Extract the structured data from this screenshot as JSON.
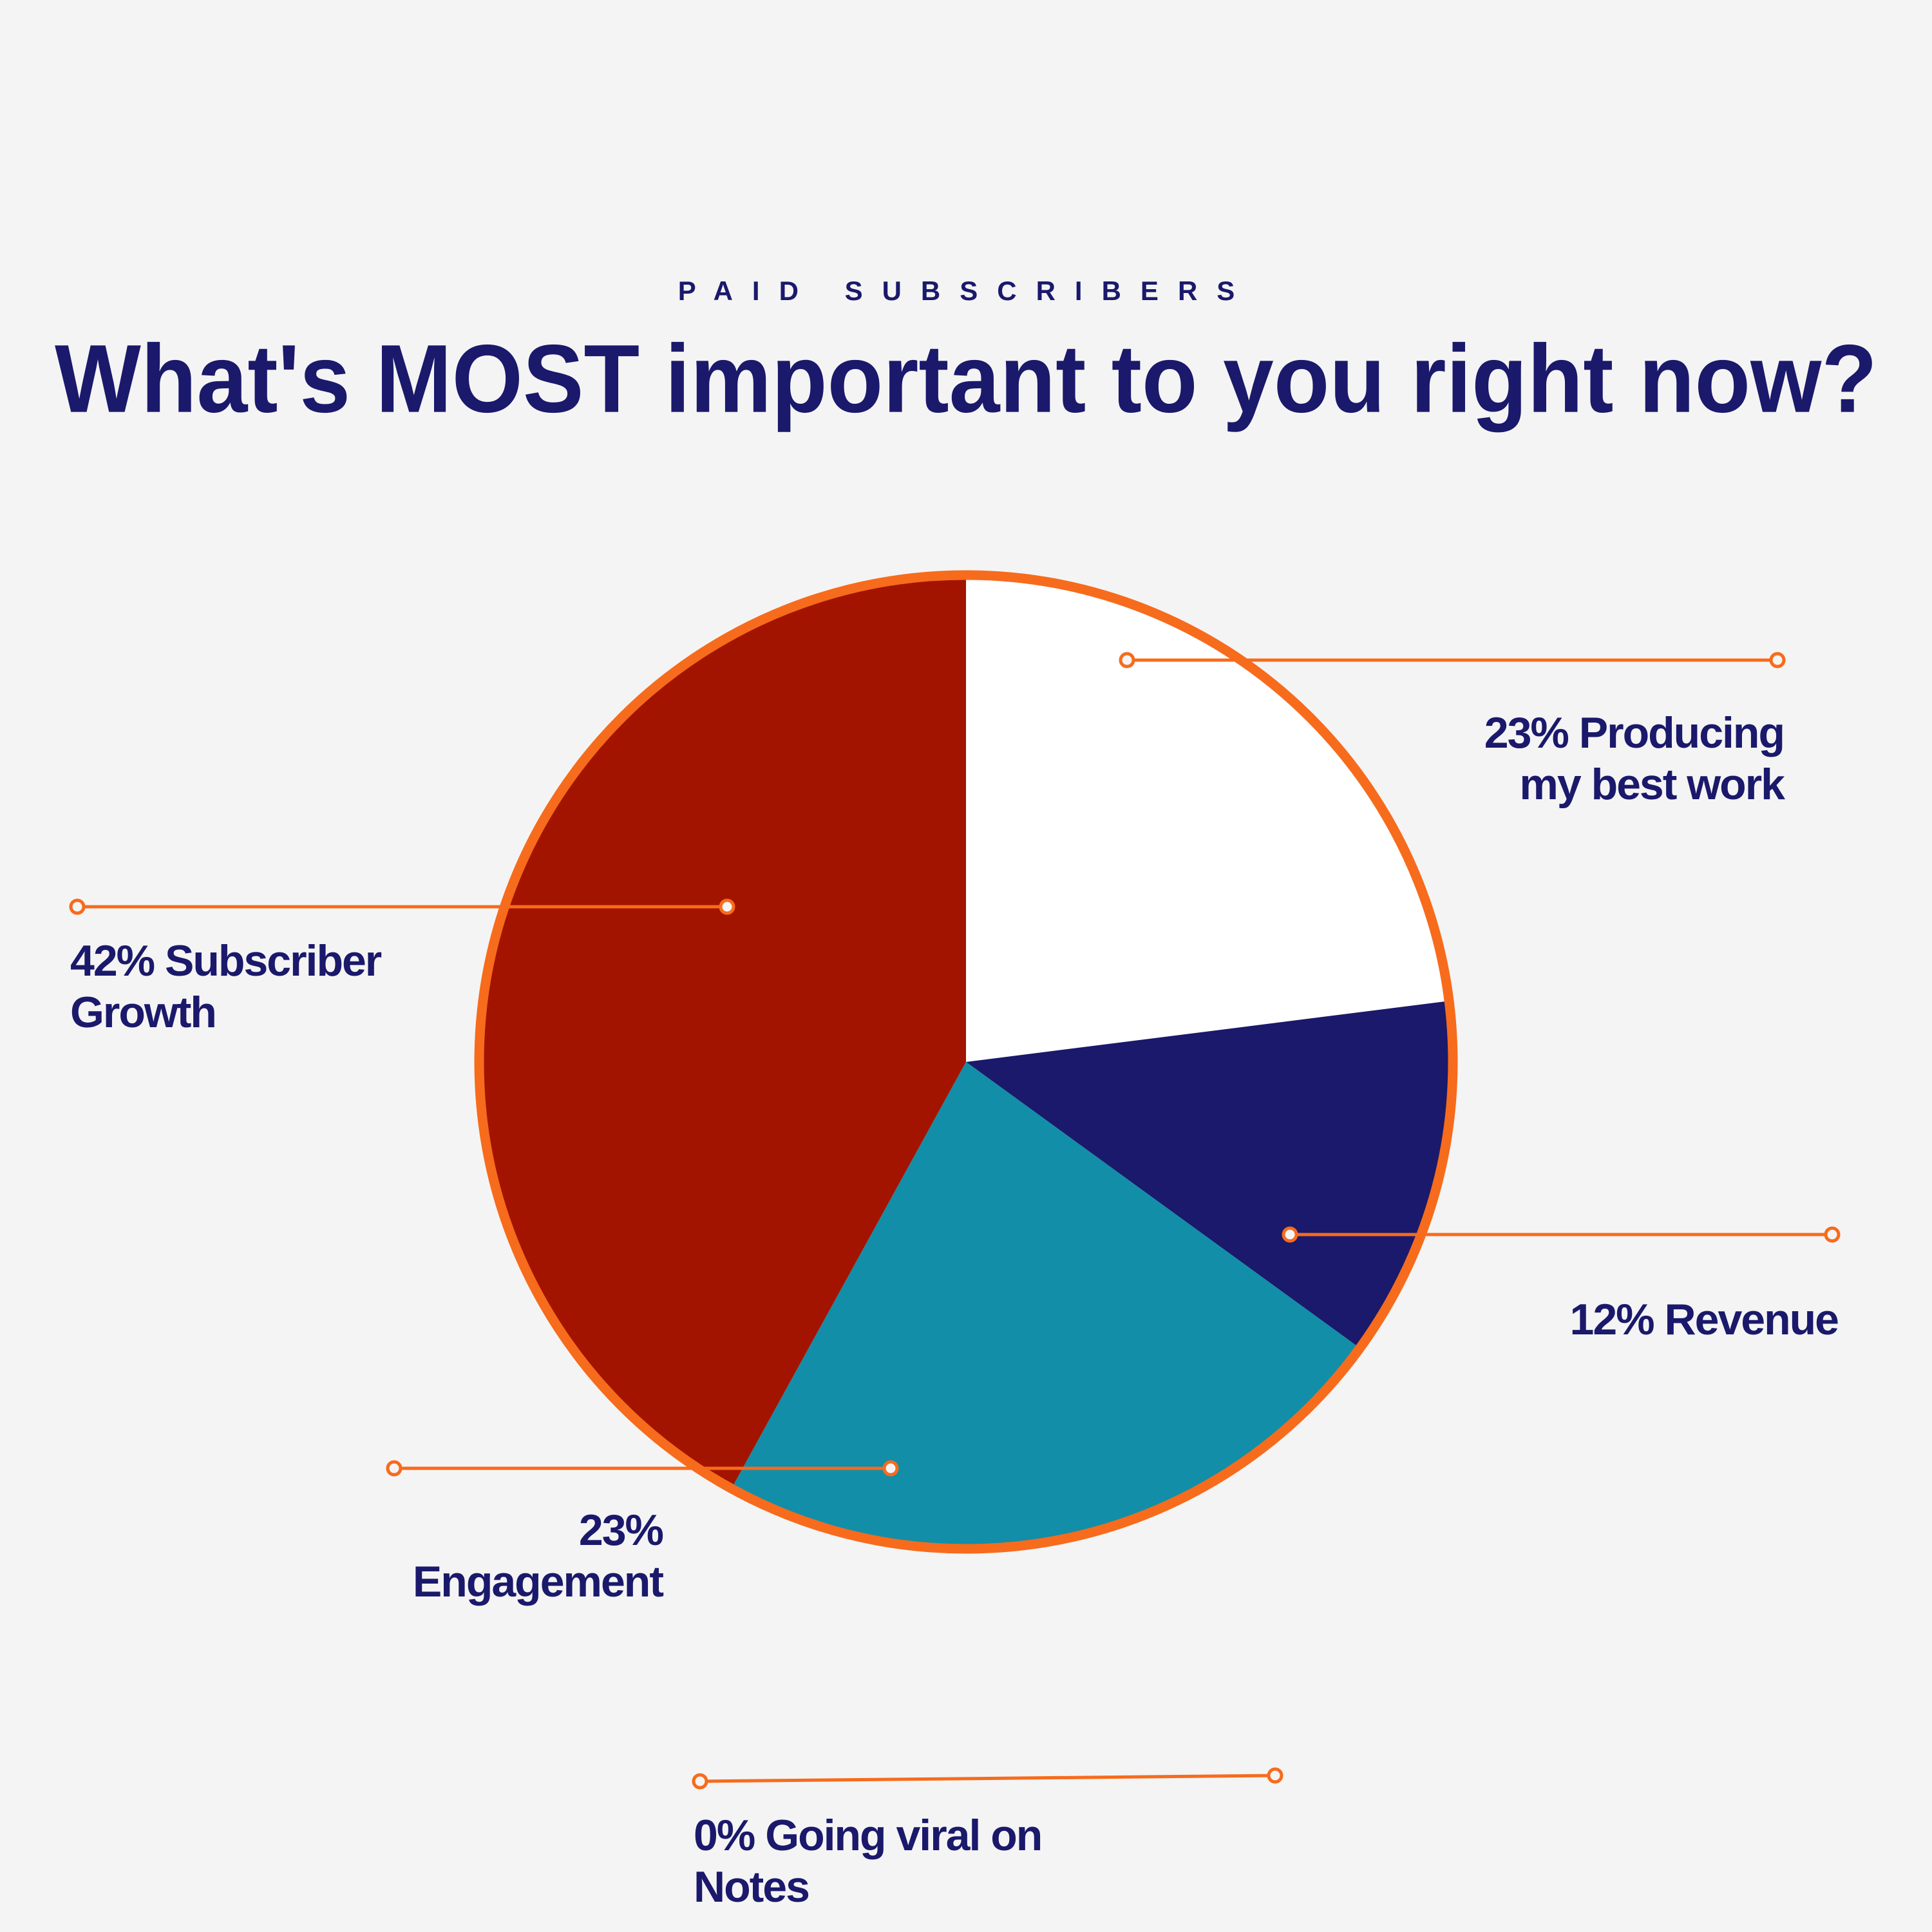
{
  "chart_data": {
    "type": "pie",
    "subtitle": "PAID SUBSCRIBERS",
    "title": "What's MOST important to you right now?",
    "categories": [
      "Producing my best work",
      "Revenue",
      "Engagement",
      "Subscriber Growth",
      "Going viral on Notes"
    ],
    "values": [
      23,
      12,
      23,
      42,
      0
    ],
    "value_labels": [
      "23%",
      "12%",
      "23%",
      "42%",
      "0%"
    ],
    "colors": [
      "#ffffff",
      "#1a196b",
      "#128ea8",
      "#a31400",
      null
    ],
    "border_color": "#f76b1c"
  }
}
